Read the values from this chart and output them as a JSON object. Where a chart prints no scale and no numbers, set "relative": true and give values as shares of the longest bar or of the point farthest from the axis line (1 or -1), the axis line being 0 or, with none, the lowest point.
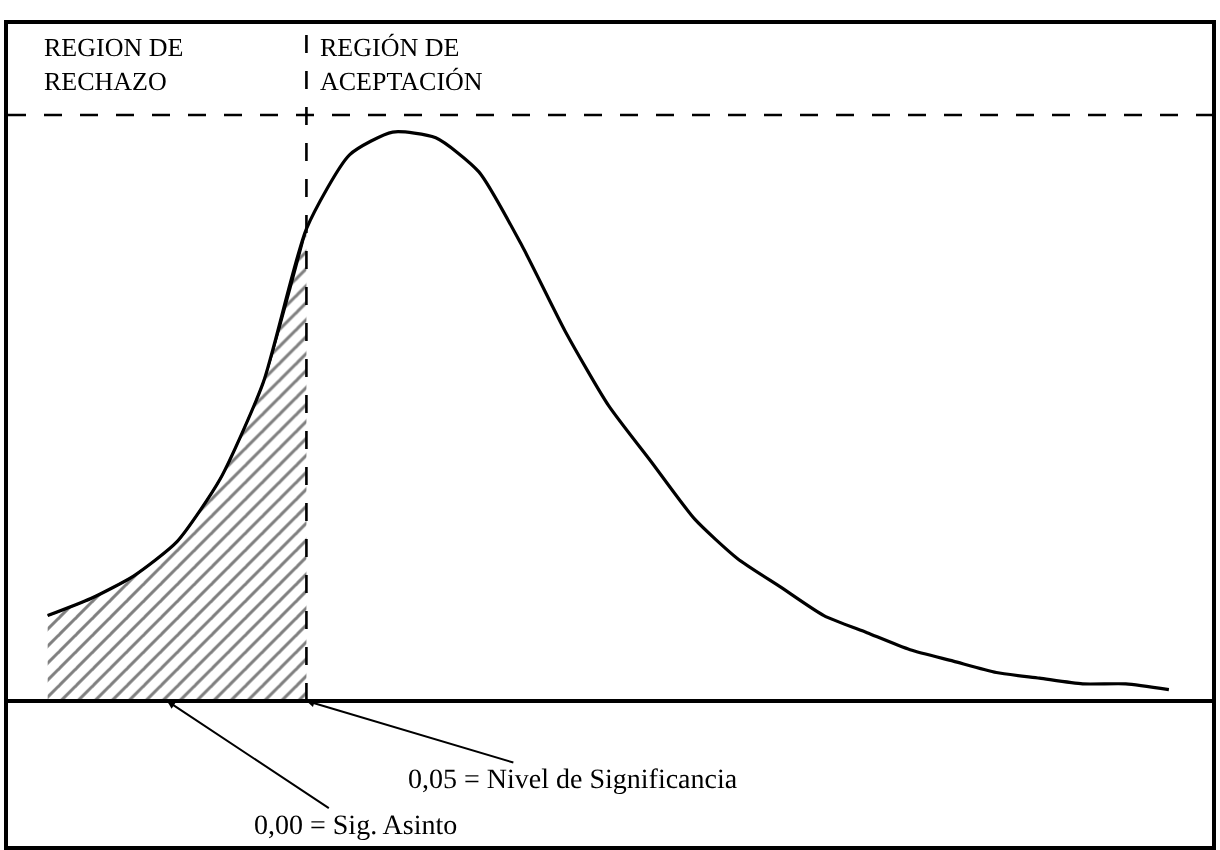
{
  "chart_data": {
    "type": "line",
    "relative": true,
    "categories": [
      null,
      null,
      null,
      null,
      null,
      null,
      null,
      null,
      null,
      null,
      null,
      null,
      null,
      null,
      null,
      null,
      null,
      null,
      null,
      null,
      null,
      null,
      null,
      null,
      null,
      null,
      null
    ],
    "series": [
      {
        "type": "area",
        "color": "#000000",
        "values": [
          0.15,
          0.18,
          0.22,
          0.28,
          0.39,
          0.56,
          0.83,
          null,
          null,
          null,
          null,
          null,
          null,
          null,
          null,
          null,
          null,
          null,
          null,
          null,
          null,
          null,
          null,
          null,
          null,
          null,
          null
        ]
      },
      {
        "color": "#000000",
        "values": [
          0.15,
          0.18,
          0.22,
          0.28,
          0.39,
          0.56,
          0.83,
          0.96,
          1.0,
          0.99,
          0.93,
          0.8,
          0.65,
          0.52,
          0.42,
          0.32,
          0.25,
          0.2,
          0.15,
          0.12,
          0.09,
          0.07,
          0.05,
          0.04,
          0.03,
          0.03,
          0.02
        ]
      }
    ],
    "ref_lines": [
      {
        "axis": "y",
        "value": 1.03,
        "label": null,
        "line_style": "dashed",
        "color": "#000000"
      }
    ],
    "annotations": [
      "REGION DE\nRECHAZO",
      "REGIÓN DE\nACEPTACIÓN",
      "0,05 = Nivel de Significancia",
      "0,00 = Sig. Asinto"
    ],
    "marker": "none",
    "line_style": "solid"
  }
}
